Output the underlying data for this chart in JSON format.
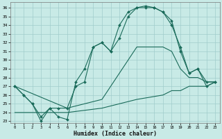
{
  "xlabel": "Humidex (Indice chaleur)",
  "bg_color": "#c8eae6",
  "grid_color": "#a0cccc",
  "line_color": "#1a6b5a",
  "xlim": [
    -0.5,
    23.5
  ],
  "ylim": [
    22.8,
    36.6
  ],
  "yticks": [
    23,
    24,
    25,
    26,
    27,
    28,
    29,
    30,
    31,
    32,
    33,
    34,
    35,
    36
  ],
  "xticks": [
    0,
    1,
    2,
    3,
    4,
    5,
    6,
    7,
    8,
    9,
    10,
    11,
    12,
    13,
    14,
    15,
    16,
    17,
    18,
    19,
    20,
    21,
    22,
    23
  ],
  "line1_x": [
    0,
    1,
    2,
    3,
    4,
    5,
    6,
    7,
    8,
    9,
    10,
    11,
    12,
    13,
    14,
    15,
    16,
    17,
    18,
    19,
    20,
    21,
    22,
    23
  ],
  "line1_y": [
    27.0,
    26.0,
    25.0,
    23.0,
    24.5,
    23.5,
    23.2,
    27.5,
    29.0,
    31.5,
    32.0,
    31.0,
    32.5,
    35.0,
    36.0,
    36.0,
    36.0,
    35.5,
    34.5,
    31.0,
    28.5,
    29.0,
    27.5,
    27.5
  ],
  "line2_x": [
    0,
    1,
    2,
    3,
    4,
    5,
    6,
    7,
    8,
    9,
    10,
    11,
    12,
    13,
    14,
    15,
    16,
    17,
    18,
    19,
    20,
    21,
    22,
    23
  ],
  "line2_y": [
    27.0,
    26.0,
    25.0,
    23.5,
    24.5,
    24.5,
    24.5,
    27.0,
    27.5,
    31.5,
    32.0,
    31.0,
    34.0,
    35.5,
    36.0,
    36.2,
    36.0,
    35.5,
    34.0,
    31.5,
    28.5,
    29.0,
    27.0,
    27.5
  ],
  "line3_x": [
    0,
    6,
    10,
    14,
    17,
    18,
    19,
    20,
    21,
    22,
    23
  ],
  "line3_y": [
    27.0,
    24.5,
    25.5,
    31.5,
    31.5,
    31.0,
    29.0,
    28.0,
    28.0,
    27.5,
    27.5
  ],
  "line4_x": [
    0,
    6,
    10,
    14,
    17,
    18,
    19,
    20,
    21,
    22,
    23
  ],
  "line4_y": [
    24.0,
    24.0,
    24.5,
    25.5,
    26.0,
    26.5,
    26.5,
    27.0,
    27.0,
    27.0,
    27.5
  ]
}
